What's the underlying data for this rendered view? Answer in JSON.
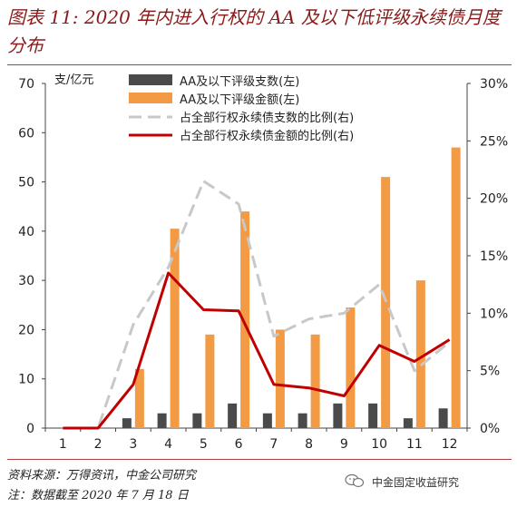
{
  "figure": {
    "title": "图表 11: 2020 年内进入行权的 AA 及以下低评级永续债月度分布",
    "source": "资料来源：万得资讯，中金公司研究",
    "note": "注：数据截至 2020 年 7 月 18 日",
    "watermark": "中金固定收益研究",
    "watermark_icon": "wechat-icon"
  },
  "chart_data": {
    "type": "bar",
    "categories": [
      "1",
      "2",
      "3",
      "4",
      "5",
      "6",
      "7",
      "8",
      "9",
      "10",
      "11",
      "12"
    ],
    "unit_label": "支/亿元",
    "ylim": [
      0,
      70
    ],
    "yticks": [
      "0",
      "10",
      "20",
      "30",
      "40",
      "50",
      "60",
      "70"
    ],
    "y2lim": [
      0,
      30
    ],
    "y2ticks": [
      "0%",
      "5%",
      "10%",
      "15%",
      "20%",
      "25%",
      "30%"
    ],
    "grid": false,
    "legend_position": "top-center",
    "series": [
      {
        "name": "AA及以下评级支数(左)",
        "kind": "bar",
        "axis": "left",
        "color": "#4a4a4a",
        "values": [
          0,
          0,
          2,
          3,
          3,
          5,
          3,
          3,
          5,
          5,
          2,
          4
        ]
      },
      {
        "name": "AA及以下评级金额(左)",
        "kind": "bar",
        "axis": "left",
        "color": "#f39a45",
        "values": [
          0,
          0,
          12,
          40.5,
          19,
          44,
          20,
          19,
          24.5,
          51,
          30,
          57
        ]
      },
      {
        "name": "占全部行权永续债支数的比例(右)",
        "kind": "line",
        "axis": "right",
        "color": "#c8c8c8",
        "dash": true,
        "values": [
          0,
          0,
          9,
          14,
          21.5,
          19.5,
          8,
          9.5,
          10,
          12.5,
          5,
          7.5
        ]
      },
      {
        "name": "占全部行权永续债金额的比例(右)",
        "kind": "line",
        "axis": "right",
        "color": "#c00000",
        "dash": false,
        "values": [
          0,
          0,
          3.8,
          13.5,
          10.3,
          10.2,
          3.8,
          3.5,
          2.8,
          7.2,
          5.8,
          7.7
        ]
      }
    ]
  }
}
